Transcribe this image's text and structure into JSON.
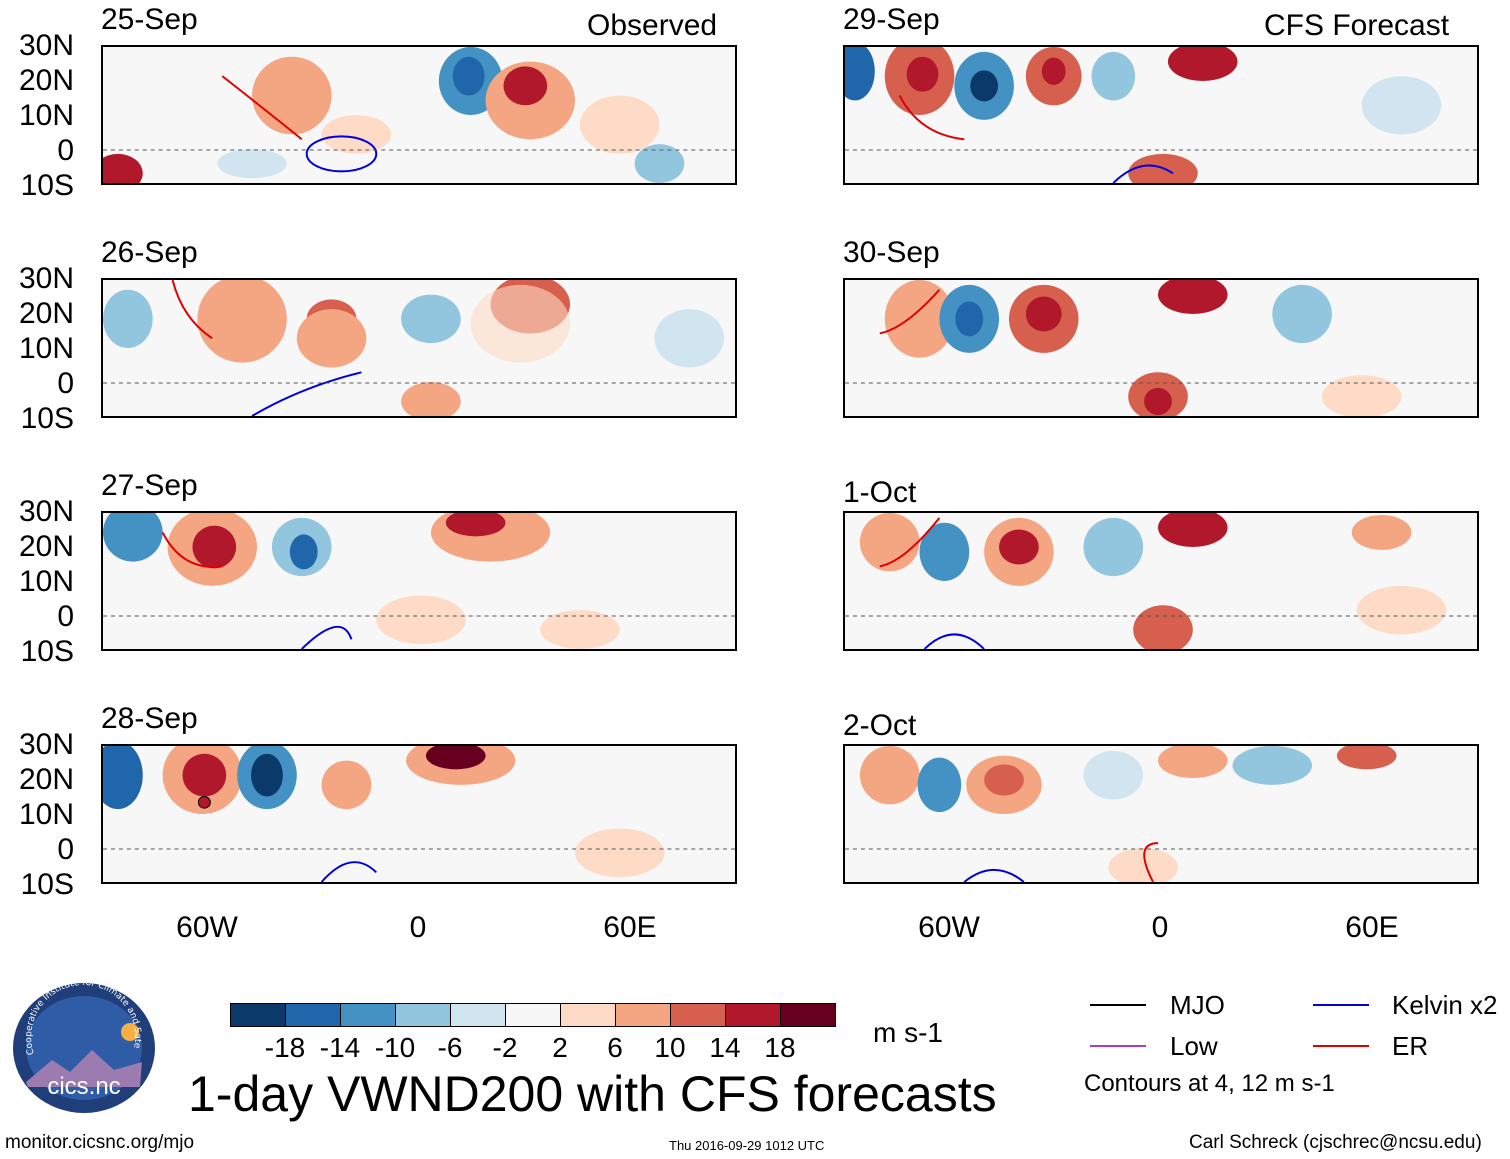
{
  "title": "1-day VWND200 with CFS forecasts",
  "units": "m s-1",
  "columns": {
    "observed": "Observed",
    "forecast": "CFS Forecast"
  },
  "panels": {
    "observed": [
      "25-Sep",
      "26-Sep",
      "27-Sep",
      "28-Sep"
    ],
    "forecast": [
      "29-Sep",
      "30-Sep",
      "1-Oct",
      "2-Oct"
    ]
  },
  "lat_ticks": [
    "30N",
    "20N",
    "10N",
    "0",
    "10S"
  ],
  "lon_ticks": [
    "60W",
    "0",
    "60E"
  ],
  "colorbar": {
    "labels": [
      "-18",
      "-14",
      "-10",
      "-6",
      "-2",
      "2",
      "6",
      "10",
      "14",
      "18"
    ],
    "colors": [
      "#0b3a6a",
      "#1f66aa",
      "#4392c3",
      "#92c5de",
      "#d1e5f0",
      "#f7f7f7",
      "#fddbc7",
      "#f4a582",
      "#d6604d",
      "#b2182b",
      "#67001f"
    ]
  },
  "legend": {
    "mjo": "MJO",
    "kelvin": "Kelvin x2",
    "low": "Low",
    "er": "ER",
    "mjo_color": "#000000",
    "kelvin_color": "#0000dd",
    "low_color": "#a040d0",
    "er_color": "#e00000",
    "contours_note": "Contours at 4, 12 m s-1"
  },
  "logo": {
    "name": "cics.nc",
    "ring_text": "Cooperative Institute for Climate and Satellites"
  },
  "footer": {
    "url": "monitor.cicsnc.org/mjo",
    "timestamp": "Thu 2016-09-29 1012 UTC",
    "author": "Carl Schreck (cjschrec@ncsu.edu)"
  }
}
